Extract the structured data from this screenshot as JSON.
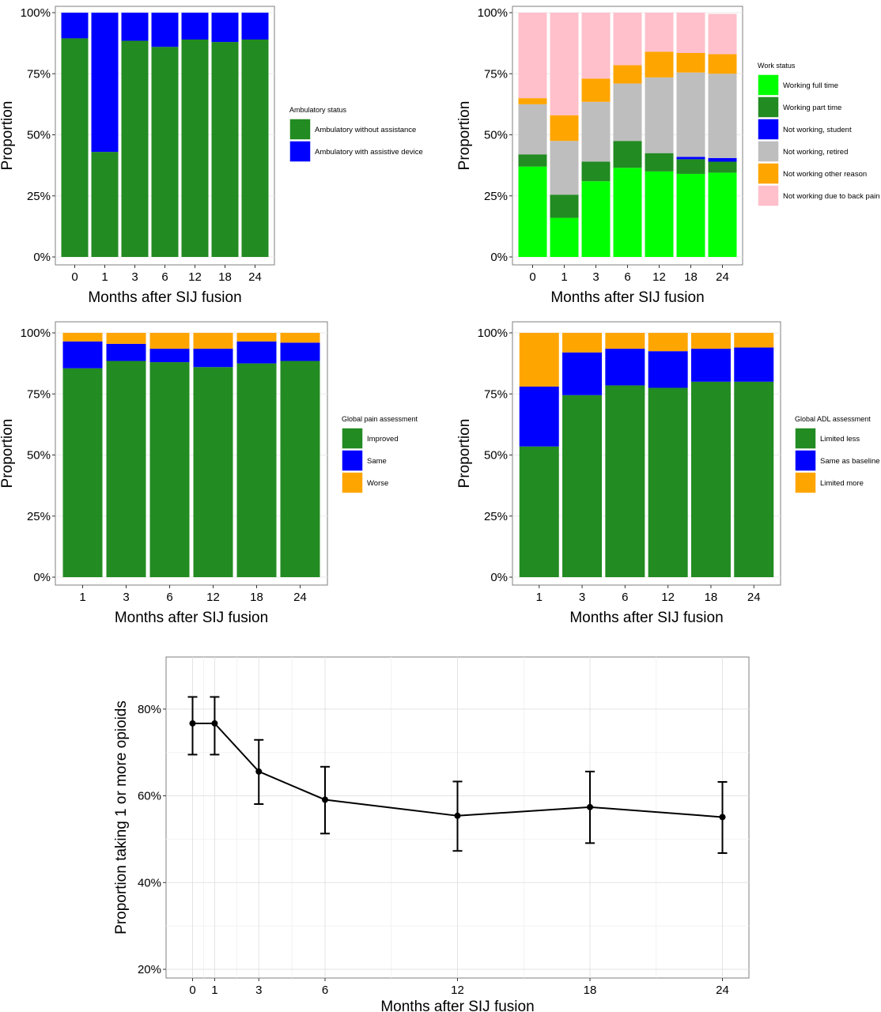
{
  "chart_data": [
    {
      "type": "bar",
      "stacked": true,
      "xlabel": "Months after SIJ fusion",
      "ylabel": "Proportion",
      "ylim": [
        0,
        1
      ],
      "yticks": [
        "0%",
        "25%",
        "50%",
        "75%",
        "100%"
      ],
      "categories": [
        "0",
        "1",
        "3",
        "6",
        "12",
        "18",
        "24"
      ],
      "legend_title": "Ambulatory status",
      "series": [
        {
          "name": "Ambulatory without assistance",
          "color": "#228B22",
          "values": [
            0.895,
            0.43,
            0.885,
            0.86,
            0.89,
            0.88,
            0.89
          ]
        },
        {
          "name": "Ambulatory with assistive device",
          "color": "#0000FF",
          "values": [
            0.105,
            0.57,
            0.115,
            0.14,
            0.11,
            0.12,
            0.11
          ]
        }
      ]
    },
    {
      "type": "bar",
      "stacked": true,
      "xlabel": "Months after SIJ fusion",
      "ylabel": "Proportion",
      "ylim": [
        0,
        1
      ],
      "yticks": [
        "0%",
        "25%",
        "50%",
        "75%",
        "100%"
      ],
      "categories": [
        "0",
        "1",
        "3",
        "6",
        "12",
        "18",
        "24"
      ],
      "legend_title": "Work status",
      "series": [
        {
          "name": "Working full time",
          "color": "#00FF00",
          "values": [
            0.37,
            0.16,
            0.31,
            0.365,
            0.35,
            0.34,
            0.345
          ]
        },
        {
          "name": "Working part time",
          "color": "#228B22",
          "values": [
            0.05,
            0.095,
            0.08,
            0.11,
            0.075,
            0.06,
            0.045
          ]
        },
        {
          "name": "Not working, student",
          "color": "#0000FF",
          "values": [
            0,
            0,
            0,
            0,
            0,
            0.01,
            0.015
          ]
        },
        {
          "name": "Not working, retired",
          "color": "#BEBEBE",
          "values": [
            0.205,
            0.22,
            0.245,
            0.235,
            0.31,
            0.345,
            0.345
          ]
        },
        {
          "name": "Not working other reason",
          "color": "#FFA500",
          "values": [
            0.025,
            0.105,
            0.095,
            0.075,
            0.105,
            0.08,
            0.08
          ]
        },
        {
          "name": "Not working due to back pain",
          "color": "#FFC0CB",
          "values": [
            0.35,
            0.42,
            0.27,
            0.215,
            0.16,
            0.165,
            0.165
          ]
        }
      ]
    },
    {
      "type": "bar",
      "stacked": true,
      "xlabel": "Months after SIJ fusion",
      "ylabel": "Proportion",
      "ylim": [
        0,
        1
      ],
      "yticks": [
        "0%",
        "25%",
        "50%",
        "75%",
        "100%"
      ],
      "categories": [
        "1",
        "3",
        "6",
        "12",
        "18",
        "24"
      ],
      "legend_title": "Global pain assessment",
      "series": [
        {
          "name": "Improved",
          "color": "#228B22",
          "values": [
            0.855,
            0.885,
            0.88,
            0.86,
            0.875,
            0.885
          ]
        },
        {
          "name": "Same",
          "color": "#0000FF",
          "values": [
            0.11,
            0.07,
            0.055,
            0.075,
            0.09,
            0.075
          ]
        },
        {
          "name": "Worse",
          "color": "#FFA500",
          "values": [
            0.035,
            0.045,
            0.065,
            0.065,
            0.035,
            0.04
          ]
        }
      ]
    },
    {
      "type": "bar",
      "stacked": true,
      "xlabel": "Months after SIJ fusion",
      "ylabel": "Proportion",
      "ylim": [
        0,
        1
      ],
      "yticks": [
        "0%",
        "25%",
        "50%",
        "75%",
        "100%"
      ],
      "categories": [
        "1",
        "3",
        "6",
        "12",
        "18",
        "24"
      ],
      "legend_title": "Global ADL assessment",
      "series": [
        {
          "name": "Limited less",
          "color": "#228B22",
          "values": [
            0.535,
            0.745,
            0.785,
            0.775,
            0.8,
            0.8
          ]
        },
        {
          "name": "Same as baseline",
          "color": "#0000FF",
          "values": [
            0.245,
            0.175,
            0.15,
            0.15,
            0.135,
            0.14
          ]
        },
        {
          "name": "Limited more",
          "color": "#FFA500",
          "values": [
            0.22,
            0.08,
            0.065,
            0.075,
            0.065,
            0.06
          ]
        }
      ]
    },
    {
      "type": "line",
      "xlabel": "Months after SIJ fusion",
      "ylabel": "Proportion taking 1 or more opioids",
      "xlim": [
        -1.2,
        25.2
      ],
      "ylim": [
        0.18,
        0.92
      ],
      "xticks": [
        0,
        1,
        3,
        6,
        12,
        18,
        24
      ],
      "yticks": [
        0.2,
        0.4,
        0.6,
        0.8
      ],
      "ytick_labels": [
        "20%",
        "40%",
        "60%",
        "80%"
      ],
      "x": [
        0,
        1,
        3,
        6,
        12,
        18,
        24
      ],
      "y": [
        0.767,
        0.767,
        0.656,
        0.591,
        0.554,
        0.574,
        0.551
      ],
      "lower": [
        0.695,
        0.695,
        0.581,
        0.513,
        0.473,
        0.491,
        0.468
      ],
      "upper": [
        0.828,
        0.828,
        0.729,
        0.667,
        0.633,
        0.656,
        0.632
      ]
    }
  ]
}
